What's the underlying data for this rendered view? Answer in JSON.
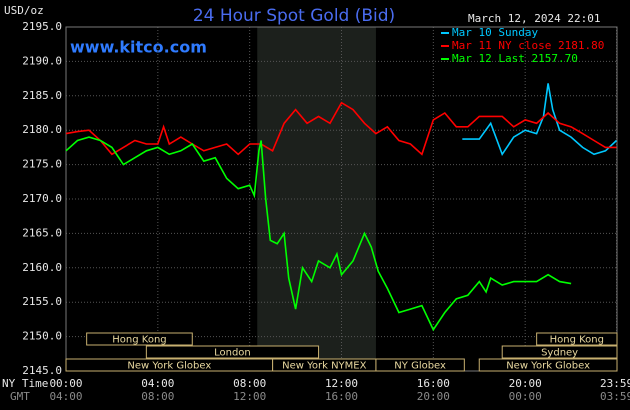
{
  "chart_data": {
    "type": "line",
    "title": "24 Hour Spot Gold (Bid)",
    "y_label": "USD/oz",
    "timestamp": "March 12, 2024 22:01",
    "watermark": "www.kitco.com",
    "x_axis_label": "NY Time",
    "x2_axis_label": "GMT",
    "xlim": [
      0,
      24
    ],
    "xticks": [
      {
        "value": 0,
        "label": "00:00"
      },
      {
        "value": 4,
        "label": "04:00"
      },
      {
        "value": 8,
        "label": "08:00"
      },
      {
        "value": 12,
        "label": "12:00"
      },
      {
        "value": 16,
        "label": "16:00"
      },
      {
        "value": 20,
        "label": "20:00"
      },
      {
        "value": 23.98,
        "label": "23:59"
      }
    ],
    "x2tick_labels": [
      "04:00",
      "08:00",
      "12:00",
      "16:00",
      "20:00",
      "00:00",
      "03:59"
    ],
    "ylim": [
      2145,
      2195
    ],
    "yticks": [
      {
        "value": 2195,
        "label": "2195.0"
      },
      {
        "value": 2190,
        "label": "2190.0"
      },
      {
        "value": 2185,
        "label": "2185.0"
      },
      {
        "value": 2180,
        "label": "2180.0"
      },
      {
        "value": 2175,
        "label": "2175.0"
      },
      {
        "value": 2170,
        "label": "2170.0"
      },
      {
        "value": 2165,
        "label": "2165.0"
      },
      {
        "value": 2160,
        "label": "2160.0"
      },
      {
        "value": 2155,
        "label": "2155.0"
      },
      {
        "value": 2150,
        "label": "2150.0"
      },
      {
        "value": 2145,
        "label": "2145.0"
      }
    ],
    "grid": true,
    "shade": [
      8.33,
      13.5
    ],
    "sessions": [
      {
        "label": "Hong Kong",
        "start": 0.9,
        "end": 5.5,
        "row": 0
      },
      {
        "label": "London",
        "start": 3.5,
        "end": 11,
        "row": 1
      },
      {
        "label": "New York Globex",
        "start": 0,
        "end": 9,
        "row": 2
      },
      {
        "label": "New York NYMEX",
        "start": 9,
        "end": 13.5,
        "row": 2
      },
      {
        "label": "NY Globex",
        "start": 13.5,
        "end": 17.35,
        "row": 2
      },
      {
        "label": "Hong Kong",
        "start": 20.5,
        "end": 24,
        "row": 0
      },
      {
        "label": "Sydney",
        "start": 19,
        "end": 24,
        "row": 1
      },
      {
        "label": "New York Globex",
        "start": 18,
        "end": 24,
        "row": 2
      }
    ],
    "series": [
      {
        "name": "Mar 10 Sunday",
        "color": "#00c8ff",
        "x": [
          17.26,
          18,
          18.5,
          19,
          19.5,
          20,
          20.5,
          20.8,
          21,
          21.2,
          21.5,
          22,
          22.5,
          23,
          23.5,
          23.98
        ],
        "values": [
          2178.7,
          2178.7,
          2181,
          2176.5,
          2179,
          2180,
          2179.5,
          2182,
          2186.8,
          2183,
          2180,
          2179,
          2177.5,
          2176.5,
          2177,
          2178.5
        ]
      },
      {
        "name": "Mar 11 NY close 2181.80",
        "color": "#ff0000",
        "x": [
          0,
          0.5,
          1,
          1.5,
          2,
          2.5,
          3,
          3.5,
          4,
          4.25,
          4.5,
          5,
          5.5,
          6,
          6.5,
          7,
          7.5,
          8,
          8.5,
          9,
          9.5,
          10,
          10.5,
          11,
          11.5,
          12,
          12.5,
          13,
          13.5,
          14,
          14.5,
          15,
          15.5,
          16,
          16.5,
          17,
          17.5,
          18,
          18.5,
          19,
          19.5,
          20,
          20.5,
          21,
          21.5,
          22,
          22.5,
          23,
          23.5,
          23.98
        ],
        "values": [
          2179.5,
          2179.8,
          2180,
          2178.5,
          2176.5,
          2177.5,
          2178.5,
          2178,
          2178,
          2180.5,
          2178,
          2179,
          2178,
          2177,
          2177.5,
          2178,
          2176.5,
          2178,
          2178,
          2177,
          2181,
          2183,
          2181,
          2182,
          2181,
          2184,
          2183,
          2181,
          2179.5,
          2180.5,
          2178.5,
          2178,
          2176.5,
          2181.5,
          2182.5,
          2180.5,
          2180.5,
          2182,
          2182,
          2182,
          2180.5,
          2181.5,
          2181,
          2182.5,
          2181,
          2180.5,
          2179.5,
          2178.5,
          2177.5,
          2177.5
        ]
      },
      {
        "name": "Mar 12 Last 2157.70",
        "color": "#00ff00",
        "x": [
          0,
          0.5,
          1,
          1.5,
          2,
          2.5,
          3,
          3.5,
          4,
          4.5,
          5,
          5.5,
          6,
          6.5,
          7,
          7.5,
          8,
          8.2,
          8.4,
          8.5,
          8.7,
          8.9,
          9.2,
          9.5,
          9.7,
          10,
          10.3,
          10.7,
          11,
          11.5,
          11.8,
          12,
          12.5,
          13,
          13.3,
          13.6,
          14,
          14.5,
          15,
          15.5,
          16,
          16.5,
          17,
          17.5,
          18,
          18.3,
          18.5,
          19,
          19.5,
          20,
          20.5,
          21,
          21.5,
          22
        ],
        "values": [
          2177,
          2178.5,
          2179,
          2178.5,
          2177.5,
          2175,
          2176,
          2177,
          2177.5,
          2176.5,
          2177,
          2178,
          2175.5,
          2176,
          2173,
          2171.5,
          2172,
          2170.5,
          2177,
          2178.5,
          2170,
          2164,
          2163.5,
          2165,
          2158.5,
          2154,
          2160,
          2158,
          2161,
          2160,
          2162,
          2159,
          2161,
          2165,
          2163,
          2159.5,
          2157,
          2153.5,
          2154,
          2154.5,
          2151,
          2153.5,
          2155.5,
          2156,
          2158,
          2156.5,
          2158.5,
          2157.5,
          2158,
          2158,
          2158,
          2159,
          2158,
          2157.7
        ]
      }
    ]
  }
}
